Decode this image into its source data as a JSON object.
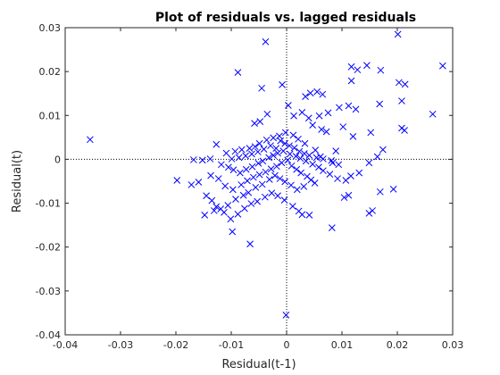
{
  "chart_data": {
    "type": "scatter",
    "title": "Plot of residuals vs. lagged residuals",
    "xlabel": "Residual(t-1)",
    "ylabel": "Residual(t)",
    "xlim": [
      -0.04,
      0.03
    ],
    "ylim": [
      -0.04,
      0.03
    ],
    "xticks": [
      -0.04,
      -0.03,
      -0.02,
      -0.01,
      0,
      0.01,
      0.02,
      0.03
    ],
    "yticks": [
      -0.04,
      -0.03,
      -0.02,
      -0.01,
      0,
      0.01,
      0.02,
      0.03
    ],
    "xtick_labels": [
      "-0.04",
      "-0.03",
      "-0.02",
      "-0.01",
      "0",
      "0.01",
      "0.02",
      "0.03"
    ],
    "ytick_labels": [
      "-0.04",
      "-0.03",
      "-0.02",
      "-0.01",
      "0",
      "0.01",
      "0.02",
      "0.03"
    ],
    "zero_lines": "dotted",
    "marker": "x",
    "color": "#0000ff",
    "points": [
      [
        -0.0355,
        0.0045
      ],
      [
        0.0201,
        0.0285
      ],
      [
        0.0282,
        0.0213
      ],
      [
        -0.0038,
        0.0268
      ],
      [
        -0.0088,
        0.0198
      ],
      [
        0.0117,
        0.0211
      ],
      [
        0.0128,
        0.0204
      ],
      [
        0.0145,
        0.0214
      ],
      [
        0.017,
        0.0203
      ],
      [
        0.0203,
        0.0175
      ],
      [
        0.0214,
        0.0171
      ],
      [
        0.0208,
        0.0133
      ],
      [
        0.0264,
        0.0103
      ],
      [
        0.0213,
        0.0066
      ],
      [
        0.0117,
        0.0179
      ],
      [
        -0.0008,
        0.017
      ],
      [
        -0.0045,
        0.0162
      ],
      [
        0.0055,
        0.0154
      ],
      [
        0.0043,
        0.0151
      ],
      [
        0.0065,
        0.0148
      ],
      [
        0.0034,
        0.0143
      ],
      [
        0.0112,
        0.0122
      ],
      [
        0.0095,
        0.0118
      ],
      [
        0.0125,
        0.0114
      ],
      [
        0.0168,
        0.0126
      ],
      [
        0.0075,
        0.0106
      ],
      [
        0.0059,
        0.0099
      ],
      [
        0.004,
        0.0094
      ],
      [
        0.0028,
        0.0107
      ],
      [
        0.0003,
        0.0123
      ],
      [
        0.0013,
        0.0099
      ],
      [
        -0.0035,
        0.0103
      ],
      [
        -0.0048,
        0.0086
      ],
      [
        -0.0058,
        0.0082
      ],
      [
        0.0047,
        0.0078
      ],
      [
        0.0063,
        0.0068
      ],
      [
        0.0072,
        0.0063
      ],
      [
        0.0102,
        0.0074
      ],
      [
        0.012,
        0.0052
      ],
      [
        0.0152,
        0.0061
      ],
      [
        0.0208,
        0.0071
      ],
      [
        0.0174,
        0.0022
      ],
      [
        0.0164,
        0.0006
      ],
      [
        0.0149,
        -0.0008
      ],
      [
        0.0089,
        0.0019
      ],
      [
        0.0094,
        -0.0012
      ],
      [
        0.0083,
        -0.0008
      ],
      [
        0.0061,
        0.0006
      ],
      [
        0.0052,
        0.0021
      ],
      [
        0.0033,
        0.0036
      ],
      [
        0.0021,
        0.0046
      ],
      [
        0.0012,
        0.0055
      ],
      [
        -0.0002,
        0.0061
      ],
      [
        -0.0013,
        0.0053
      ],
      [
        -0.0024,
        0.0049
      ],
      [
        -0.0036,
        0.0044
      ],
      [
        -0.0049,
        0.0036
      ],
      [
        -0.0057,
        0.0029
      ],
      [
        -0.0067,
        0.0025
      ],
      [
        -0.0081,
        0.0022
      ],
      [
        -0.0093,
        0.0018
      ],
      [
        -0.0109,
        0.0014
      ],
      [
        -0.0127,
        0.0034
      ],
      [
        -0.0138,
        0.0001
      ],
      [
        -0.0152,
        -0.0002
      ],
      [
        -0.0168,
        -0.0001
      ],
      [
        -0.0118,
        -0.0012
      ],
      [
        -0.0105,
        -0.0018
      ],
      [
        -0.0096,
        -0.0024
      ],
      [
        -0.0084,
        -0.0031
      ],
      [
        -0.0073,
        -0.0023
      ],
      [
        -0.0062,
        -0.0017
      ],
      [
        -0.0051,
        -0.0009
      ],
      [
        -0.0043,
        -0.0004
      ],
      [
        -0.0032,
        0.0004
      ],
      [
        -0.0024,
        0.0009
      ],
      [
        -0.0016,
        0.0014
      ],
      [
        -0.0006,
        0.0019
      ],
      [
        0.0006,
        0.0012
      ],
      [
        0.0017,
        0.0007
      ],
      [
        0.0025,
        0.0002
      ],
      [
        0.0035,
        -0.0004
      ],
      [
        0.0047,
        -0.0011
      ],
      [
        0.0058,
        -0.0018
      ],
      [
        0.0066,
        -0.0026
      ],
      [
        0.0078,
        -0.0034
      ],
      [
        0.0092,
        -0.0044
      ],
      [
        0.0107,
        -0.0048
      ],
      [
        0.0116,
        -0.0038
      ],
      [
        0.0131,
        -0.0031
      ],
      [
        0.0112,
        -0.0082
      ],
      [
        0.0104,
        -0.0087
      ],
      [
        0.0169,
        -0.0074
      ],
      [
        0.0193,
        -0.0068
      ],
      [
        0.0155,
        -0.0117
      ],
      [
        0.0149,
        -0.0123
      ],
      [
        0.0082,
        -0.0156
      ],
      [
        0.0028,
        -0.0126
      ],
      [
        0.0011,
        -0.0107
      ],
      [
        -0.0004,
        -0.0093
      ],
      [
        -0.0016,
        -0.0083
      ],
      [
        -0.0027,
        -0.0077
      ],
      [
        -0.0039,
        -0.0086
      ],
      [
        -0.0053,
        -0.0096
      ],
      [
        -0.0064,
        -0.0101
      ],
      [
        -0.0076,
        -0.0112
      ],
      [
        -0.0088,
        -0.0125
      ],
      [
        -0.0101,
        -0.0136
      ],
      [
        -0.0113,
        -0.0121
      ],
      [
        -0.0127,
        -0.0108
      ],
      [
        -0.0135,
        -0.0094
      ],
      [
        -0.0145,
        -0.0083
      ],
      [
        -0.0159,
        -0.0052
      ],
      [
        -0.0172,
        -0.0058
      ],
      [
        -0.0198,
        -0.0048
      ],
      [
        -0.0137,
        -0.0037
      ],
      [
        -0.0123,
        -0.0044
      ],
      [
        -0.0111,
        -0.0061
      ],
      [
        -0.0097,
        -0.0069
      ],
      [
        -0.0082,
        -0.0058
      ],
      [
        -0.0071,
        -0.0049
      ],
      [
        -0.006,
        -0.0041
      ],
      [
        -0.0049,
        -0.0035
      ],
      [
        -0.0038,
        -0.0029
      ],
      [
        -0.0028,
        -0.0022
      ],
      [
        -0.0018,
        -0.0016
      ],
      [
        -0.0009,
        -0.0008
      ],
      [
        0.0002,
        -0.0002
      ],
      [
        0.0009,
        -0.0015
      ],
      [
        0.0018,
        -0.0023
      ],
      [
        0.0026,
        -0.0031
      ],
      [
        0.0037,
        -0.0039
      ],
      [
        0.0044,
        -0.0047
      ],
      [
        0.0051,
        -0.0054
      ],
      [
        0.0031,
        -0.0062
      ],
      [
        0.0019,
        -0.0069
      ],
      [
        0.0008,
        -0.0059
      ],
      [
        -0.0003,
        -0.0051
      ],
      [
        -0.0012,
        -0.0044
      ],
      [
        -0.0021,
        -0.0037
      ],
      [
        -0.0031,
        -0.0046
      ],
      [
        -0.0044,
        -0.0057
      ],
      [
        -0.0056,
        -0.0064
      ],
      [
        -0.0069,
        -0.0076
      ],
      [
        -0.0078,
        -0.0082
      ],
      [
        -0.0092,
        -0.0091
      ],
      [
        -0.0106,
        -0.0105
      ],
      [
        -0.0119,
        -0.0113
      ],
      [
        -0.0066,
        -0.0193
      ],
      [
        -0.0098,
        -0.0165
      ],
      [
        -0.0131,
        -0.0117
      ],
      [
        -0.0148,
        -0.0127
      ],
      [
        0.0041,
        -0.0127
      ],
      [
        0.0022,
        -0.0118
      ],
      [
        -0.0003,
        0.0036
      ],
      [
        -0.0011,
        0.0042
      ],
      [
        0.0005,
        0.0031
      ],
      [
        0.0014,
        0.0026
      ],
      [
        0.0023,
        0.0018
      ],
      [
        0.0032,
        0.0013
      ],
      [
        0.0041,
        0.0009
      ],
      [
        0.0054,
        0.0004
      ],
      [
        0.0066,
        0.0001
      ],
      [
        0.0081,
        -0.0003
      ],
      [
        -0.0019,
        0.0025
      ],
      [
        -0.0029,
        0.0031
      ],
      [
        -0.0041,
        0.0023
      ],
      [
        -0.0052,
        0.0017
      ],
      [
        -0.0063,
        0.0012
      ],
      [
        -0.0074,
        0.0008
      ],
      [
        -0.0086,
        0.0004
      ],
      [
        -0.0099,
        0.0001
      ],
      [
        -0.0001,
        -0.0355
      ]
    ]
  }
}
